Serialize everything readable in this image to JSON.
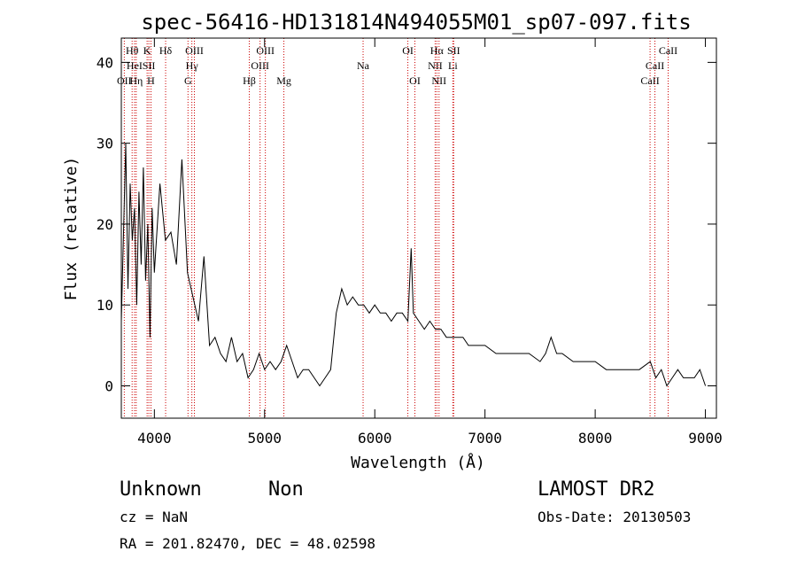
{
  "chart_data": {
    "type": "line",
    "title": "spec-56416-HD131814N494055M01_sp07-097.fits",
    "xlabel": "Wavelength (Å)",
    "ylabel": "Flux (relative)",
    "xlim": [
      3700,
      9100
    ],
    "ylim": [
      -4,
      43
    ],
    "xticks": [
      4000,
      5000,
      6000,
      7000,
      8000,
      9000
    ],
    "yticks": [
      0,
      10,
      20,
      30,
      40
    ],
    "grid": false,
    "series": [
      {
        "x": [
          3700,
          3740,
          3760,
          3780,
          3800,
          3820,
          3840,
          3860,
          3880,
          3900,
          3920,
          3940,
          3960,
          3980,
          4000,
          4050,
          4100,
          4150,
          4200,
          4250,
          4300,
          4350,
          4400,
          4450,
          4500,
          4550,
          4600,
          4650,
          4700,
          4750,
          4800,
          4850,
          4900,
          4950,
          5000,
          5050,
          5100,
          5150,
          5200,
          5250,
          5300,
          5350,
          5400,
          5450,
          5500,
          5550,
          5600,
          5650,
          5700,
          5750,
          5800,
          5850,
          5900,
          5950,
          6000,
          6050,
          6100,
          6150,
          6200,
          6250,
          6300,
          6330,
          6350,
          6400,
          6450,
          6500,
          6550,
          6600,
          6650,
          6700,
          6750,
          6800,
          6850,
          6900,
          6950,
          7000,
          7100,
          7200,
          7300,
          7400,
          7500,
          7550,
          7600,
          7650,
          7700,
          7800,
          7900,
          8000,
          8100,
          8200,
          8300,
          8400,
          8500,
          8550,
          8600,
          8650,
          8700,
          8750,
          8800,
          8850,
          8900,
          8950,
          9000
        ],
        "y": [
          8,
          30,
          12,
          25,
          18,
          22,
          10,
          24,
          15,
          27,
          13,
          20,
          6,
          22,
          14,
          25,
          18,
          19,
          15,
          28,
          14,
          11,
          8,
          16,
          5,
          6,
          4,
          3,
          6,
          3,
          4,
          1,
          2,
          4,
          2,
          3,
          2,
          3,
          5,
          3,
          1,
          2,
          2,
          1,
          0,
          1,
          2,
          9,
          12,
          10,
          11,
          10,
          10,
          9,
          10,
          9,
          9,
          8,
          9,
          9,
          8,
          17,
          9,
          8,
          7,
          8,
          7,
          7,
          6,
          6,
          6,
          6,
          5,
          5,
          5,
          5,
          4,
          4,
          4,
          4,
          3,
          4,
          6,
          4,
          4,
          3,
          3,
          3,
          2,
          2,
          2,
          2,
          3,
          1,
          2,
          0,
          1,
          2,
          1,
          1,
          1,
          2,
          0
        ]
      }
    ],
    "line_markers": [
      {
        "label": "OII",
        "x": 3727,
        "row": 3
      },
      {
        "label": "Hθ",
        "x": 3798,
        "row": 1
      },
      {
        "label": "HeI",
        "x": 3820,
        "row": 2
      },
      {
        "label": "Hη",
        "x": 3835,
        "row": 3
      },
      {
        "label": "K",
        "x": 3934,
        "row": 1
      },
      {
        "label": "SII",
        "x": 3950,
        "row": 2
      },
      {
        "label": "H",
        "x": 3969,
        "row": 3
      },
      {
        "label": "Hδ",
        "x": 4102,
        "row": 1
      },
      {
        "label": "G",
        "x": 4305,
        "row": 3
      },
      {
        "label": "Hγ",
        "x": 4340,
        "row": 2
      },
      {
        "label": "OIII",
        "x": 4363,
        "row": 1
      },
      {
        "label": "Hβ",
        "x": 4861,
        "row": 3
      },
      {
        "label": "OIII",
        "x": 4959,
        "row": 2
      },
      {
        "label": "OIII",
        "x": 5007,
        "row": 1
      },
      {
        "label": "Mg",
        "x": 5175,
        "row": 3
      },
      {
        "label": "Na",
        "x": 5894,
        "row": 2
      },
      {
        "label": "OI",
        "x": 6300,
        "row": 1
      },
      {
        "label": "OI",
        "x": 6364,
        "row": 3
      },
      {
        "label": "NII",
        "x": 6548,
        "row": 2
      },
      {
        "label": "Hα",
        "x": 6563,
        "row": 1
      },
      {
        "label": "NII",
        "x": 6583,
        "row": 3
      },
      {
        "label": "SII",
        "x": 6716,
        "row": 1
      },
      {
        "label": "Li",
        "x": 6708,
        "row": 2
      },
      {
        "label": "CaII",
        "x": 8498,
        "row": 3
      },
      {
        "label": "CaII",
        "x": 8542,
        "row": 2
      },
      {
        "label": "CaII",
        "x": 8662,
        "row": 1
      }
    ],
    "colors": {
      "spectrum": "#000000",
      "marker_line": "#cc0000",
      "axes": "#000000"
    }
  },
  "info": {
    "object": "Unknown",
    "class": "Non",
    "cz": "cz = NaN",
    "radec": "RA = 201.82470, DEC =  48.02598",
    "survey": "LAMOST DR2",
    "obsdate": "Obs-Date: 20130503"
  }
}
